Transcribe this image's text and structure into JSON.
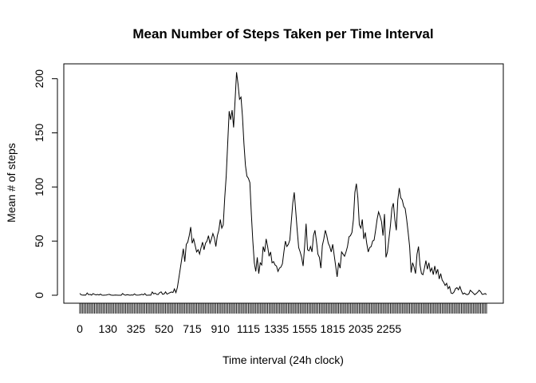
{
  "chart_data": {
    "type": "line",
    "title": "Mean Number of Steps Taken per Time Interval",
    "xlabel": "Time interval (24h clock)",
    "ylabel": "Mean # of steps",
    "x_tick_labels": [
      "0",
      "130",
      "325",
      "520",
      "715",
      "910",
      "1115",
      "1335",
      "1555",
      "1815",
      "2035",
      "2255"
    ],
    "y_ticks": [
      0,
      50,
      100,
      150,
      200
    ],
    "ylim": [
      0,
      206
    ],
    "grid": false,
    "series": [
      {
        "values": [
          1.7,
          0.3,
          0.1,
          0.2,
          0.1,
          2.1,
          0.5,
          0.8,
          0.1,
          1.5,
          0.8,
          0.3,
          0.7,
          0.2,
          1.0,
          0.1,
          0.0,
          0.1,
          0.2,
          0.6,
          0.8,
          0.2,
          0.0,
          0.0,
          0.2,
          0.1,
          0.0,
          0.0,
          0.0,
          1.6,
          0.4,
          0.0,
          0.5,
          0.3,
          0.0,
          0.3,
          0.1,
          1.2,
          0.2,
          0.1,
          0.2,
          0.4,
          0.9,
          0.3,
          1.5,
          0.0,
          0.0,
          0.2,
          0.0,
          3.0,
          1.3,
          1.9,
          0.8,
          0.7,
          2.4,
          3.1,
          0.9,
          1.2,
          3.1,
          1.0,
          1.7,
          2.4,
          3.0,
          2.5,
          5.8,
          2.4,
          7.2,
          16.0,
          25.0,
          34.0,
          43.0,
          31.0,
          47.0,
          49.0,
          55.0,
          63.0,
          48.0,
          52.0,
          46.0,
          40.0,
          42.0,
          38.0,
          44.0,
          49.0,
          42.0,
          48.0,
          50.0,
          55.0,
          48.0,
          52.0,
          57.0,
          53.0,
          45.0,
          55.0,
          60.0,
          70.0,
          62.0,
          65.0,
          90.0,
          110.0,
          140.0,
          170.0,
          162.0,
          171.0,
          155.0,
          180.0,
          206.0,
          195.0,
          181.0,
          183.0,
          165.0,
          140.0,
          120.0,
          110.0,
          108.0,
          104.0,
          75.0,
          50.0,
          30.0,
          22.0,
          35.0,
          20.0,
          30.0,
          28.0,
          45.0,
          40.0,
          52.0,
          45.0,
          36.0,
          40.0,
          30.0,
          31.0,
          28.0,
          27.0,
          22.0,
          25.0,
          26.0,
          29.0,
          40.0,
          50.0,
          45.0,
          47.0,
          51.0,
          68.0,
          85.0,
          95.0,
          78.0,
          60.0,
          44.0,
          40.0,
          35.0,
          27.0,
          45.0,
          66.0,
          42.0,
          41.0,
          45.0,
          40.0,
          55.0,
          60.0,
          50.0,
          38.0,
          35.0,
          25.0,
          46.0,
          52.0,
          60.0,
          55.0,
          48.0,
          45.0,
          40.0,
          47.0,
          37.0,
          27.0,
          17.0,
          30.0,
          25.0,
          40.0,
          38.0,
          36.0,
          40.0,
          45.0,
          54.0,
          55.0,
          58.0,
          70.0,
          95.0,
          103.0,
          90.0,
          65.0,
          62.0,
          70.0,
          52.0,
          58.0,
          48.0,
          40.0,
          44.0,
          45.0,
          50.0,
          51.0,
          60.0,
          70.0,
          77.0,
          73.0,
          68.0,
          55.0,
          75.0,
          35.0,
          40.0,
          52.0,
          64.0,
          80.0,
          85.0,
          70.0,
          60.0,
          88.0,
          99.0,
          90.0,
          88.0,
          82.0,
          80.0,
          70.0,
          58.0,
          45.0,
          21.0,
          30.0,
          26.0,
          20.0,
          38.0,
          45.0,
          28.0,
          20.0,
          19.0,
          25.0,
          32.0,
          24.0,
          30.0,
          22.0,
          25.0,
          19.0,
          27.0,
          20.0,
          24.0,
          15.0,
          20.0,
          14.0,
          12.0,
          9.0,
          11.0,
          6.0,
          8.0,
          2.0,
          1.5,
          3.0,
          6.0,
          7.0,
          5.0,
          8.0,
          4.0,
          1.0,
          2.0,
          1.0,
          0.5,
          1.2,
          4.6,
          3.3,
          2.0,
          0.5,
          1.5,
          2.8,
          4.6,
          3.3,
          0.8,
          0.9,
          1.6,
          0.6
        ]
      }
    ]
  }
}
